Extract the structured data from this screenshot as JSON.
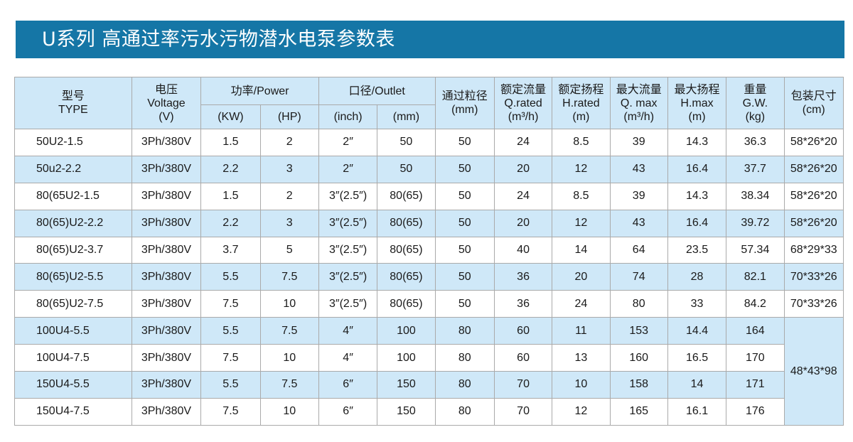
{
  "title": "U系列 高通过率污水污物潜水电泵参数表",
  "colors": {
    "title_bg": "#1576a6",
    "header_bg": "#cfe8f8",
    "row_alt_bg": "#cfe8f8",
    "border": "#aaaaaa"
  },
  "headers": {
    "type": [
      "型号",
      "TYPE"
    ],
    "voltage": [
      "电压",
      "Voltage",
      "(V)"
    ],
    "power": "功率/Power",
    "power_kw": "(KW)",
    "power_hp": "(HP)",
    "outlet": "口径/Outlet",
    "outlet_inch": "(inch)",
    "outlet_mm": "(mm)",
    "passage": [
      "通过粒径",
      "(mm)"
    ],
    "q_rated": [
      "额定流量",
      "Q.rated",
      "(m³/h)"
    ],
    "h_rated": [
      "额定扬程",
      "H.rated",
      "(m)"
    ],
    "q_max": [
      "最大流量",
      "Q. max",
      "(m³/h)"
    ],
    "h_max": [
      "最大扬程",
      "H.max",
      "(m)"
    ],
    "weight": [
      "重量",
      "G.W.",
      "(kg)"
    ],
    "package": [
      "包装尺寸",
      "(cm)"
    ]
  },
  "rows": [
    {
      "type": "50U2-1.5",
      "voltage": "3Ph/380V",
      "kw": "1.5",
      "hp": "2",
      "inch": "2″",
      "mm": "50",
      "passage": "50",
      "q_rated": "24",
      "h_rated": "8.5",
      "q_max": "39",
      "h_max": "14.3",
      "weight": "36.3",
      "package": "58*26*20"
    },
    {
      "type": "50u2-2.2",
      "voltage": "3Ph/380V",
      "kw": "2.2",
      "hp": "3",
      "inch": "2″",
      "mm": "50",
      "passage": "50",
      "q_rated": "20",
      "h_rated": "12",
      "q_max": "43",
      "h_max": "16.4",
      "weight": "37.7",
      "package": "58*26*20"
    },
    {
      "type": "80(65U2-1.5",
      "voltage": "3Ph/380V",
      "kw": "1.5",
      "hp": "2",
      "inch": "3″(2.5″)",
      "mm": "80(65)",
      "passage": "50",
      "q_rated": "24",
      "h_rated": "8.5",
      "q_max": "39",
      "h_max": "14.3",
      "weight": "38.34",
      "package": "58*26*20"
    },
    {
      "type": "80(65)U2-2.2",
      "voltage": "3Ph/380V",
      "kw": "2.2",
      "hp": "3",
      "inch": "3″(2.5″)",
      "mm": "80(65)",
      "passage": "50",
      "q_rated": "20",
      "h_rated": "12",
      "q_max": "43",
      "h_max": "16.4",
      "weight": "39.72",
      "package": "58*26*20"
    },
    {
      "type": "80(65)U2-3.7",
      "voltage": "3Ph/380V",
      "kw": "3.7",
      "hp": "5",
      "inch": "3″(2.5″)",
      "mm": "80(65)",
      "passage": "50",
      "q_rated": "40",
      "h_rated": "14",
      "q_max": "64",
      "h_max": "23.5",
      "weight": "57.34",
      "package": "68*29*33"
    },
    {
      "type": "80(65)U2-5.5",
      "voltage": "3Ph/380V",
      "kw": "5.5",
      "hp": "7.5",
      "inch": "3″(2.5″)",
      "mm": "80(65)",
      "passage": "50",
      "q_rated": "36",
      "h_rated": "20",
      "q_max": "74",
      "h_max": "28",
      "weight": "82.1",
      "package": "70*33*26"
    },
    {
      "type": "80(65)U2-7.5",
      "voltage": "3Ph/380V",
      "kw": "7.5",
      "hp": "10",
      "inch": "3″(2.5″)",
      "mm": "80(65)",
      "passage": "50",
      "q_rated": "36",
      "h_rated": "24",
      "q_max": "80",
      "h_max": "33",
      "weight": "84.2",
      "package": "70*33*26"
    },
    {
      "type": "100U4-5.5",
      "voltage": "3Ph/380V",
      "kw": "5.5",
      "hp": "7.5",
      "inch": "4″",
      "mm": "100",
      "passage": "80",
      "q_rated": "60",
      "h_rated": "11",
      "q_max": "153",
      "h_max": "14.4",
      "weight": "164",
      "package": "48*43*98"
    },
    {
      "type": "100U4-7.5",
      "voltage": "3Ph/380V",
      "kw": "7.5",
      "hp": "10",
      "inch": "4″",
      "mm": "100",
      "passage": "80",
      "q_rated": "60",
      "h_rated": "13",
      "q_max": "160",
      "h_max": "16.5",
      "weight": "170"
    },
    {
      "type": "150U4-5.5",
      "voltage": "3Ph/380V",
      "kw": "5.5",
      "hp": "7.5",
      "inch": "6″",
      "mm": "150",
      "passage": "80",
      "q_rated": "70",
      "h_rated": "10",
      "q_max": "158",
      "h_max": "14",
      "weight": "171"
    },
    {
      "type": "150U4-7.5",
      "voltage": "3Ph/380V",
      "kw": "7.5",
      "hp": "10",
      "inch": "6″",
      "mm": "150",
      "passage": "80",
      "q_rated": "70",
      "h_rated": "12",
      "q_max": "165",
      "h_max": "16.1",
      "weight": "176"
    }
  ]
}
